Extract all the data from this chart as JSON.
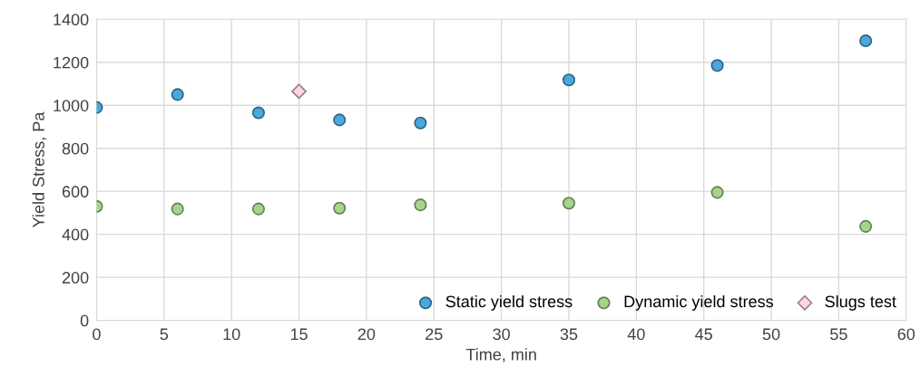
{
  "chart_data": {
    "type": "scatter",
    "xlabel": "Time, min",
    "ylabel": "Yield Stress, Pa",
    "xlim": [
      0,
      60
    ],
    "xticks": [
      0,
      5,
      10,
      15,
      20,
      25,
      30,
      35,
      40,
      45,
      50,
      55,
      60
    ],
    "ylim": [
      0,
      1400
    ],
    "yticks": [
      0,
      200,
      400,
      600,
      800,
      1000,
      1200,
      1400
    ],
    "grid": true,
    "legend": "bottom right",
    "series": [
      {
        "name": "Static yield stress",
        "color": "#4ba8dc",
        "marker": "circle",
        "x": [
          0,
          6,
          12,
          18,
          24,
          35,
          46,
          57
        ],
        "values": [
          990,
          1050,
          965,
          932,
          918,
          1118,
          1185,
          1300
        ]
      },
      {
        "name": "Dynamic yield stress",
        "color": "#a5d58a",
        "marker": "circle",
        "x": [
          0,
          6,
          12,
          18,
          24,
          35,
          46,
          57
        ],
        "values": [
          530,
          518,
          518,
          522,
          537,
          545,
          595,
          437
        ]
      },
      {
        "name": "Slugs test",
        "color": "#ffd6e0",
        "marker": "diamond",
        "x": [
          15
        ],
        "values": [
          1065
        ]
      }
    ]
  }
}
